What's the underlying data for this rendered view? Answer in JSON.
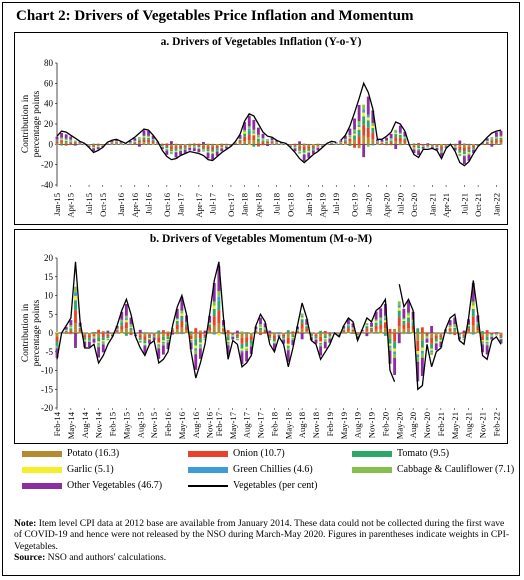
{
  "title": "Chart 2: Drivers of Vegetables Price Inflation and Momentum",
  "legend": [
    {
      "label": "Potato (16.3)",
      "color": "#b5892f"
    },
    {
      "label": "Onion (10.7)",
      "color": "#e8432a"
    },
    {
      "label": "Tomato (9.5)",
      "color": "#2ca86b"
    },
    {
      "label": "Garlic (5.1)",
      "color": "#f5ee2a"
    },
    {
      "label": "Green Chillies (4.6)",
      "color": "#3f9ad8"
    },
    {
      "label": "Cabbage & Cauliflower (7.1)",
      "color": "#86c04c"
    },
    {
      "label": "Other Vegetables (46.7)",
      "color": "#8b2fa0"
    },
    {
      "label": "Vegetables (per cent)",
      "color": "#000000"
    }
  ],
  "note_label": "Note:",
  "note_text": "Item level CPI data at 2012 base are available from January 2014. These data could not be collected during the first wave of COVID-19 and hence were not released by the NSO during March-May 2020. Figures in parentheses indicate weights in CPI-Vegetables.",
  "source_label": "Source:",
  "source_text": "NSO and authors' calculations.",
  "chart_data": [
    {
      "type": "bar",
      "title": "a. Drivers of Vegetables Inflation (Y-o-Y)",
      "ylabel": "Contribution in percentage points",
      "ylim": [
        -40,
        80
      ],
      "yticks": [
        -40,
        -20,
        0,
        20,
        40,
        60,
        80
      ],
      "xticks": [
        "Jan-15",
        "Apr-15",
        "Jul-15",
        "Oct-15",
        "Jan-16",
        "Apr-16",
        "Jul-16",
        "Oct-16",
        "Jan-17",
        "Apr-17",
        "Jul-17",
        "Oct-17",
        "Jan-18",
        "Apr-18",
        "Jul-18",
        "Oct-18",
        "Jan-19",
        "Apr-19",
        "Jul-19",
        "Oct-19",
        "Jan-20",
        "Apr-20",
        "Jul-20",
        "Oct-20",
        "Jan-21",
        "Apr-21",
        "Jul-21",
        "Oct-21",
        "Jan-22"
      ],
      "gap": {
        "after_index": 61,
        "label": "Mar-May 2020 not available"
      },
      "line_series": "Vegetables (per cent)",
      "line": [
        8,
        13,
        12,
        9,
        6,
        3,
        1,
        -3,
        -8,
        -6,
        -3,
        2,
        4,
        5,
        3,
        1,
        4,
        7,
        11,
        15,
        14,
        9,
        3,
        -6,
        -12,
        -15,
        -14,
        -11,
        -9,
        -7,
        -8,
        -9,
        -11,
        -15,
        -16,
        -12,
        -8,
        -5,
        -2,
        3,
        10,
        23,
        30,
        28,
        20,
        12,
        8,
        7,
        4,
        2,
        1,
        -3,
        -8,
        -14,
        -18,
        -14,
        -10,
        -7,
        -3,
        1,
        3,
        2,
        4,
        9,
        18,
        31,
        45,
        60,
        51,
        35,
        5,
        5,
        8,
        12,
        22,
        20,
        13,
        -1,
        -10,
        -13,
        -5,
        -5,
        -4,
        -6,
        -14,
        -4,
        0,
        -7,
        -18,
        -21,
        -17,
        -9,
        -2,
        2,
        7,
        11,
        13,
        14
      ]
    },
    {
      "type": "bar",
      "title": "b. Drivers of  Vegetables Momentum (M-o-M)",
      "ylabel": "Contribution in percentage points",
      "ylim": [
        -20,
        20
      ],
      "yticks": [
        -20,
        -15,
        -10,
        -5,
        0,
        5,
        10,
        15,
        20
      ],
      "xticks": [
        "Feb-14",
        "May-14",
        "Aug-14",
        "Nov-14",
        "Feb-15",
        "May-15",
        "Aug-15",
        "Nov-15",
        "Feb-16",
        "May-16",
        "Aug-16",
        "Nov-16",
        "Feb-17",
        "May-17",
        "Aug-17",
        "Nov-17",
        "Feb-18",
        "May-18",
        "Aug-18",
        "Nov-18",
        "Feb-19",
        "May-19",
        "Aug-19",
        "Nov-19",
        "Feb-20",
        "May-20",
        "Aug-20",
        "Nov-20",
        "Feb-21",
        "May-21",
        "Aug-21",
        "Nov-21",
        "Feb-22"
      ],
      "gap": {
        "after_index": 73,
        "label": "Mar-May 2020 not available"
      },
      "line_series": "Vegetables (per cent)",
      "line": [
        -7,
        0,
        2,
        4,
        19,
        3,
        -4,
        -4,
        -3,
        -8,
        -6,
        -3,
        -1,
        2,
        6,
        9,
        5,
        -1,
        -4,
        -6,
        -3,
        -2,
        -8,
        -7,
        -5,
        2,
        7,
        10,
        5,
        -5,
        -12,
        -8,
        -3,
        5,
        14,
        19,
        4,
        -7,
        -2,
        -3,
        -9,
        -8,
        -6,
        2,
        5,
        3,
        -3,
        -5,
        -1,
        -3,
        -9,
        -4,
        2,
        8,
        4,
        -2,
        -3,
        -7,
        -5,
        -3,
        0,
        -1,
        2,
        4,
        3,
        -2,
        1,
        4,
        3,
        6,
        7,
        9,
        -10,
        -13,
        13,
        7,
        9,
        6,
        -15,
        -14,
        -3,
        -9,
        -5,
        -4,
        1,
        4,
        5,
        -2,
        -3,
        4,
        14,
        5,
        -6,
        -7,
        -2,
        -1,
        -3
      ]
    }
  ]
}
